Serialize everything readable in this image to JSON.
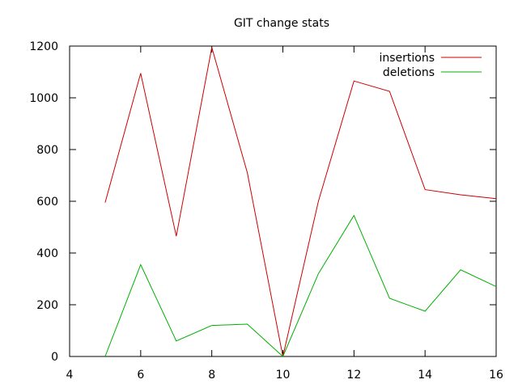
{
  "chart_data": {
    "type": "line",
    "title": "GIT change stats",
    "xlabel": "",
    "ylabel": "",
    "xlim": [
      4,
      16
    ],
    "ylim": [
      0,
      1200
    ],
    "x_ticks": [
      4,
      6,
      8,
      10,
      12,
      14,
      16
    ],
    "y_ticks": [
      0,
      200,
      400,
      600,
      800,
      1000,
      1200
    ],
    "grid": false,
    "legend_position": "top-right",
    "series": [
      {
        "name": "insertions",
        "color": "#cc0000",
        "x": [
          5,
          6,
          7,
          8,
          9,
          10,
          11,
          12,
          13,
          14,
          15,
          16
        ],
        "y": [
          595,
          1095,
          465,
          1195,
          710,
          0,
          600,
          1065,
          1025,
          645,
          625,
          610
        ]
      },
      {
        "name": "deletions",
        "color": "#00b000",
        "x": [
          5,
          6,
          7,
          8,
          9,
          10,
          11,
          12,
          13,
          14,
          15,
          16
        ],
        "y": [
          0,
          355,
          60,
          120,
          125,
          0,
          320,
          545,
          225,
          175,
          335,
          270
        ]
      }
    ]
  }
}
